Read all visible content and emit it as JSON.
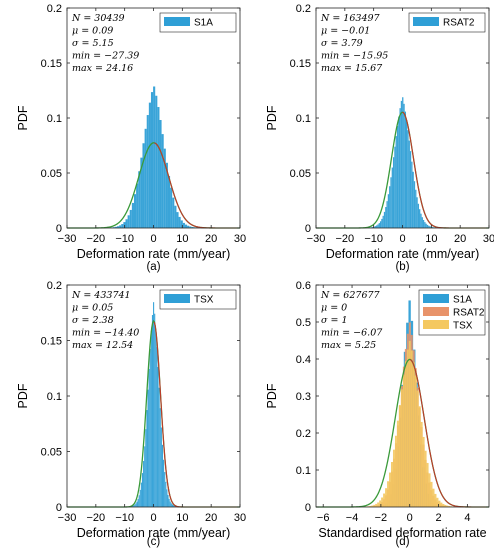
{
  "chart_data": [
    {
      "type": "histogram",
      "caption": "(a)",
      "xlabel": "Deformation rate (mm/year)",
      "ylabel": "PDF",
      "xlim": [
        -30,
        30
      ],
      "ylim": [
        0,
        0.2
      ],
      "xticks": [
        -30,
        -20,
        -10,
        0,
        10,
        20,
        30
      ],
      "yticks": [
        0,
        0.05,
        0.1,
        0.15,
        0.2
      ],
      "ytick_labels": [
        "0",
        "0.05",
        "0.1",
        "0.15",
        "0.2"
      ],
      "legend": "top-right",
      "series": [
        {
          "name": "S1A",
          "color": "#2f9fd6",
          "peak": 0.13,
          "sigma": 4.0,
          "mean": 0.09,
          "min": -27.39,
          "max": 24.16
        }
      ],
      "normal_fit": {
        "mu": 0.09,
        "sigma": 5.15
      },
      "stats": [
        {
          "key": "N",
          "value": "30439"
        },
        {
          "key": "μ",
          "value": "0.09"
        },
        {
          "key": "σ",
          "value": "5.15"
        },
        {
          "key": "min",
          "value": "−27.39"
        },
        {
          "key": "max",
          "value": "24.16"
        }
      ]
    },
    {
      "type": "histogram",
      "caption": "(b)",
      "xlabel": "Deformation rate (mm/year)",
      "ylabel": "PDF",
      "xlim": [
        -30,
        30
      ],
      "ylim": [
        0,
        0.2
      ],
      "xticks": [
        -30,
        -20,
        -10,
        0,
        10,
        20,
        30
      ],
      "yticks": [
        0,
        0.05,
        0.1,
        0.15,
        0.2
      ],
      "ytick_labels": [
        "0",
        "0.05",
        "0.1",
        "0.15",
        "0.2"
      ],
      "legend": "top-right",
      "series": [
        {
          "name": "RSAT2",
          "color": "#2f9fd6",
          "peak": 0.12,
          "sigma": 3.1,
          "mean": -0.01,
          "min": -15.95,
          "max": 15.67
        }
      ],
      "normal_fit": {
        "mu": -0.01,
        "sigma": 3.79
      },
      "stats": [
        {
          "key": "N",
          "value": "163497"
        },
        {
          "key": "μ",
          "value": "−0.01"
        },
        {
          "key": "σ",
          "value": "3.79"
        },
        {
          "key": "min",
          "value": "−15.95"
        },
        {
          "key": "max",
          "value": "15.67"
        }
      ]
    },
    {
      "type": "histogram",
      "caption": "(c)",
      "xlabel": "Deformation rate (mm/year)",
      "ylabel": "PDF",
      "xlim": [
        -30,
        30
      ],
      "ylim": [
        0,
        0.2
      ],
      "xticks": [
        -30,
        -20,
        -10,
        0,
        10,
        20,
        30
      ],
      "yticks": [
        0,
        0.05,
        0.1,
        0.15,
        0.2
      ],
      "ytick_labels": [
        "0",
        "0.05",
        "0.1",
        "0.15",
        "0.2"
      ],
      "legend": "top-right",
      "series": [
        {
          "name": "TSX",
          "color": "#2f9fd6",
          "peak": 0.185,
          "sigma": 2.1,
          "mean": 0.05,
          "min": -14.4,
          "max": 12.54
        }
      ],
      "normal_fit": {
        "mu": 0.05,
        "sigma": 2.38
      },
      "stats": [
        {
          "key": "N",
          "value": "433741"
        },
        {
          "key": "μ",
          "value": "0.05"
        },
        {
          "key": "σ",
          "value": "2.38"
        },
        {
          "key": "min",
          "value": "−14.40"
        },
        {
          "key": "max",
          "value": "12.54"
        }
      ]
    },
    {
      "type": "histogram",
      "caption": "(d)",
      "xlabel": "Standardised deformation rate",
      "ylabel": "PDF",
      "xlim": [
        -6.5,
        5.5
      ],
      "ylim": [
        0,
        0.6
      ],
      "xticks": [
        -6,
        -4,
        -2,
        0,
        2,
        4
      ],
      "yticks": [
        0,
        0.1,
        0.2,
        0.3,
        0.4,
        0.5,
        0.6
      ],
      "ytick_labels": [
        "0",
        "0.1",
        "0.2",
        "0.3",
        "0.4",
        "0.5",
        "0.6"
      ],
      "legend": "top-right",
      "series": [
        {
          "name": "S1A",
          "color": "#2f9fd6",
          "peak": 0.56,
          "sigma": 0.55,
          "mean": 0,
          "min": -6.07,
          "max": 5.25
        },
        {
          "name": "RSAT2",
          "color": "#e8936a",
          "peak": 0.5,
          "sigma": 0.7,
          "mean": 0,
          "min": -5.0,
          "max": 4.6
        },
        {
          "name": "TSX",
          "color": "#f4c860",
          "peak": 0.45,
          "sigma": 0.8,
          "mean": 0,
          "min": -5.0,
          "max": 4.6
        }
      ],
      "normal_fit": {
        "mu": 0,
        "sigma": 1
      },
      "stats": [
        {
          "key": "N",
          "value": "627677"
        },
        {
          "key": "μ",
          "value": "0"
        },
        {
          "key": "σ",
          "value": "1"
        },
        {
          "key": "min",
          "value": "−6.07"
        },
        {
          "key": "max",
          "value": "5.25"
        }
      ]
    }
  ],
  "colors": {
    "fit_line_green": "#3a9a3a",
    "fit_line_red": "#c0392b"
  }
}
